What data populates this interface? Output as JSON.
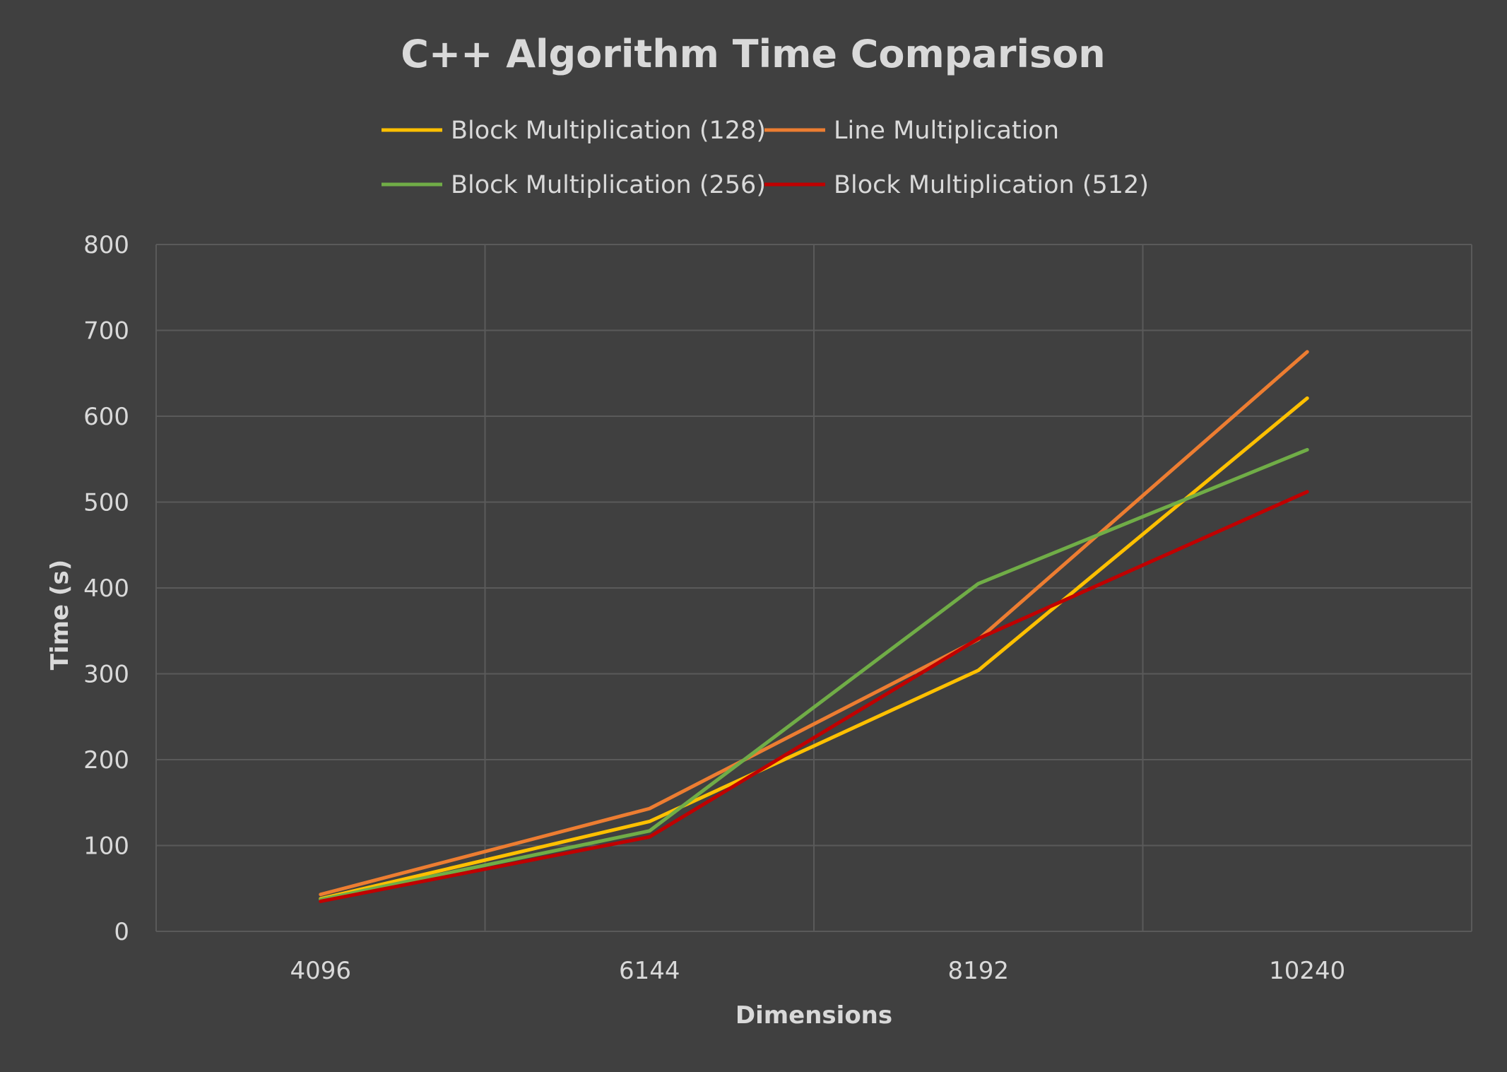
{
  "chart_data": {
    "type": "line",
    "title": "C++ Algorithm Time Comparison",
    "xlabel": "Dimensions",
    "ylabel": "Time (s)",
    "categories": [
      "4096",
      "6144",
      "8192",
      "10240"
    ],
    "ylim": [
      0,
      800
    ],
    "yticks": [
      0,
      100,
      200,
      300,
      400,
      500,
      600,
      700,
      800
    ],
    "grid": true,
    "legend_position": "top",
    "series": [
      {
        "name": "Block Multiplication (128)",
        "color": "#ffc000",
        "values": [
          38,
          128,
          304,
          621
        ]
      },
      {
        "name": "Line Multiplication",
        "color": "#ed7d31",
        "values": [
          43,
          143,
          340,
          675
        ]
      },
      {
        "name": "Block Multiplication (256)",
        "color": "#70ad47",
        "values": [
          37,
          117,
          405,
          561
        ]
      },
      {
        "name": "Block Multiplication (512)",
        "color": "#c00000",
        "values": [
          35,
          110,
          341,
          512
        ]
      }
    ]
  }
}
